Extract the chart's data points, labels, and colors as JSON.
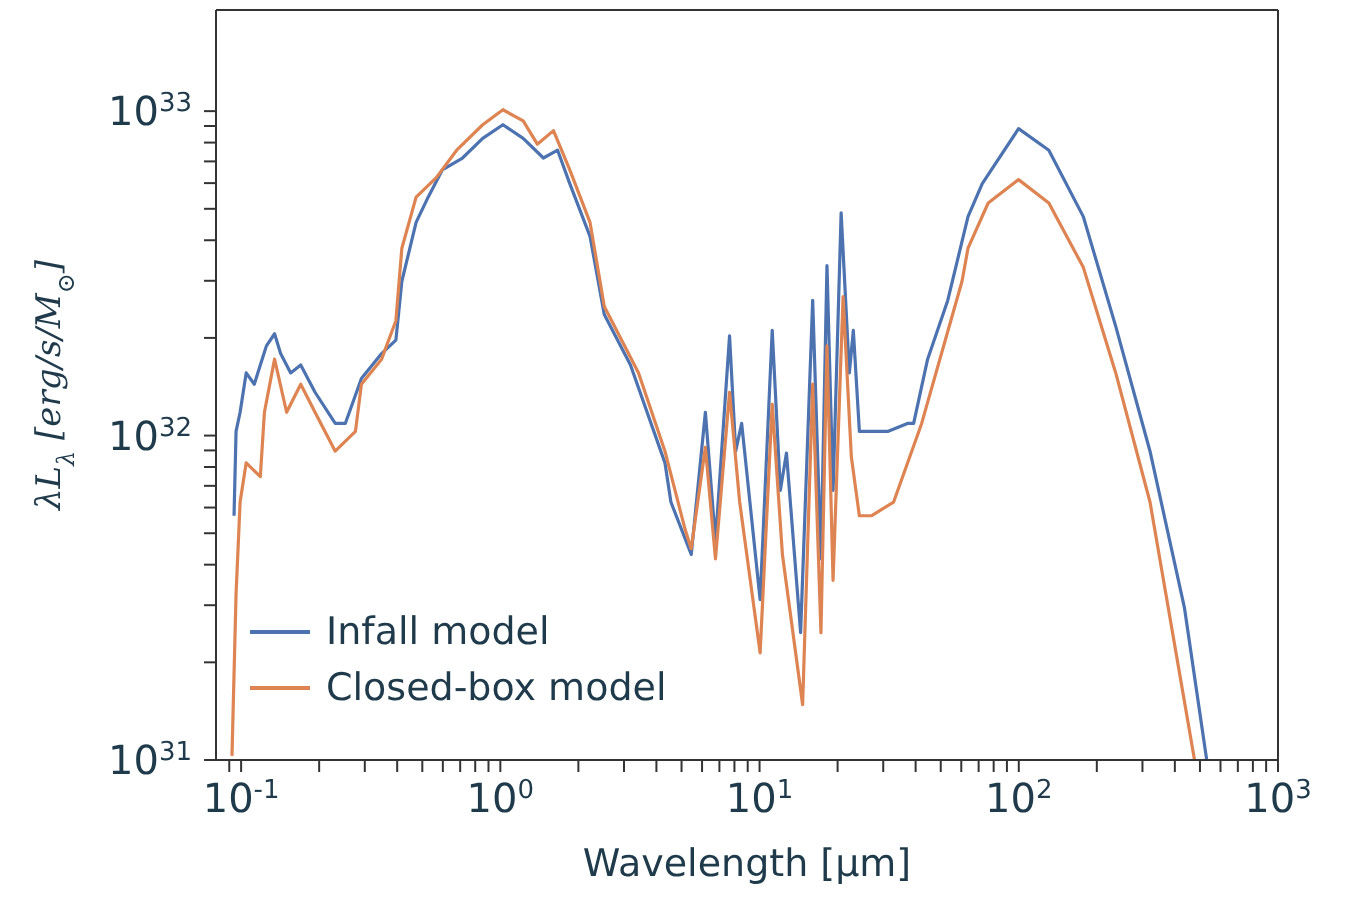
{
  "chart_data": {
    "type": "line",
    "xlabel": "Wavelength [μm]",
    "ylabel": "λL$_{λ}$ [erg/s/M$_{⊙}$]",
    "log": "xy",
    "legend": "bottom left",
    "xlim": [
      0.08,
      1000
    ],
    "ylim": [
      1e+31,
      2.05e+33
    ],
    "xticks": [
      {
        "value": 0.09,
        "label": null
      },
      {
        "value": 0.1,
        "label": "10$^{-1}$"
      },
      {
        "value": 0.2,
        "label": null
      },
      {
        "value": 0.3,
        "label": null
      },
      {
        "value": 0.4,
        "label": null
      },
      {
        "value": 0.5,
        "label": null
      },
      {
        "value": 0.6,
        "label": null
      },
      {
        "value": 0.7,
        "label": null
      },
      {
        "value": 0.8,
        "label": null
      },
      {
        "value": 0.9,
        "label": null
      },
      {
        "value": 1,
        "label": "10$^{0}$"
      },
      {
        "value": 2,
        "label": null
      },
      {
        "value": 3,
        "label": null
      },
      {
        "value": 4,
        "label": null
      },
      {
        "value": 5,
        "label": null
      },
      {
        "value": 6,
        "label": null
      },
      {
        "value": 7,
        "label": null
      },
      {
        "value": 8,
        "label": null
      },
      {
        "value": 9,
        "label": null
      },
      {
        "value": 10,
        "label": "10$^{1}$"
      },
      {
        "value": 20,
        "label": null
      },
      {
        "value": 30,
        "label": null
      },
      {
        "value": 40,
        "label": null
      },
      {
        "value": 50,
        "label": null
      },
      {
        "value": 60,
        "label": null
      },
      {
        "value": 70,
        "label": null
      },
      {
        "value": 80,
        "label": null
      },
      {
        "value": 90,
        "label": null
      },
      {
        "value": 100,
        "label": "10$^{2}$"
      },
      {
        "value": 200,
        "label": null
      },
      {
        "value": 300,
        "label": null
      },
      {
        "value": 400,
        "label": null
      },
      {
        "value": 500,
        "label": null
      },
      {
        "value": 600,
        "label": null
      },
      {
        "value": 700,
        "label": null
      },
      {
        "value": 800,
        "label": null
      },
      {
        "value": 900,
        "label": null
      },
      {
        "value": 1000,
        "label": "10$^{3}$"
      }
    ],
    "yticks": [
      {
        "value": 1e+31,
        "label": "10$^{31}$"
      },
      {
        "value": 2e+31,
        "label": null
      },
      {
        "value": 3e+31,
        "label": null
      },
      {
        "value": 4e+31,
        "label": null
      },
      {
        "value": 5e+31,
        "label": null
      },
      {
        "value": 6e+31,
        "label": null
      },
      {
        "value": 7e+31,
        "label": null
      },
      {
        "value": 8e+31,
        "label": null
      },
      {
        "value": 9e+31,
        "label": null
      },
      {
        "value": 1e+32,
        "label": "10$^{32}$"
      },
      {
        "value": 2e+32,
        "label": null
      },
      {
        "value": 3e+32,
        "label": null
      },
      {
        "value": 4e+32,
        "label": null
      },
      {
        "value": 5e+32,
        "label": null
      },
      {
        "value": 6e+32,
        "label": null
      },
      {
        "value": 7e+32,
        "label": null
      },
      {
        "value": 8e+32,
        "label": null
      },
      {
        "value": 9e+32,
        "label": null
      },
      {
        "value": 1e+33,
        "label": "10$^{33}$"
      }
    ],
    "series": [
      {
        "name": "Infall model",
        "color": "#4c72b0",
        "x": [
          0.0939,
          0.0956,
          0.0991,
          0.1046,
          0.1124,
          0.1186,
          0.1252,
          0.1346,
          0.142,
          0.1553,
          0.1698,
          0.1928,
          0.2307,
          0.2523,
          0.2911,
          0.3483,
          0.3954,
          0.4169,
          0.4732,
          0.5265,
          0.597,
          0.7145,
          0.855,
          1.023,
          1.225,
          1.466,
          1.663,
          1.853,
          2.218,
          2.518,
          3.177,
          4.315,
          4.55,
          5.45,
          6.18,
          6.76,
          7.66,
          8.09,
          8.53,
          10.05,
          11.19,
          12.03,
          12.7,
          14.4,
          16.03,
          17.25,
          18.2,
          19.21,
          20.64,
          22.2,
          23.0,
          24.27,
          26.1,
          31.2,
          37.2,
          39.3,
          44.5,
          53.2,
          63.7,
          72.3,
          99.8,
          130.6,
          177.4,
          236.6,
          320.8,
          435.5,
          530.9
        ],
        "values": [
          5.66e+31,
          1.03e+32,
          1.18e+32,
          1.56e+32,
          1.44e+32,
          1.65e+32,
          1.89e+32,
          2.06e+32,
          1.79e+32,
          1.56e+32,
          1.65e+32,
          1.36e+32,
          1.09e+32,
          1.09e+32,
          1.5e+32,
          1.79e+32,
          1.97e+32,
          2.99e+32,
          4.54e+32,
          5.43e+32,
          6.59e+32,
          7.17e+32,
          8.24e+32,
          9.08e+32,
          8.24e+32,
          7.17e+32,
          7.58e+32,
          5.98e+32,
          4.11e+32,
          2.36e+32,
          1.65e+32,
          8.24e+31,
          6.24e+31,
          4.3e+31,
          1.18e+32,
          4.73e+31,
          2.03e+32,
          8.95e+31,
          1.09e+32,
          3.12e+31,
          2.11e+32,
          6.78e+31,
          8.83e+31,
          2.47e+31,
          2.61e+32,
          4.17e+31,
          3.34e+32,
          6.78e+31,
          4.86e+32,
          1.56e+32,
          2.11e+32,
          1.03e+32,
          1.03e+32,
          1.03e+32,
          1.09e+32,
          1.09e+32,
          1.72e+32,
          2.61e+32,
          4.73e+32,
          5.98e+32,
          8.83e+32,
          7.58e+32,
          4.73e+32,
          2.17e+32,
          8.95e+31,
          2.95e+31,
          1e+31
        ]
      },
      {
        "name": "Closed-box model",
        "color": "#dd8452",
        "x": [
          0.0922,
          0.0956,
          0.0991,
          0.1046,
          0.1186,
          0.123,
          0.1346,
          0.1498,
          0.1698,
          0.1928,
          0.2307,
          0.2761,
          0.2911,
          0.3483,
          0.3954,
          0.4169,
          0.4732,
          0.5662,
          0.6785,
          0.855,
          1.023,
          1.225,
          1.389,
          1.603,
          1.853,
          2.218,
          2.518,
          3.413,
          4.315,
          5.16,
          5.45,
          6.18,
          6.76,
          7.66,
          8.38,
          10.05,
          11.19,
          12.25,
          14.66,
          16.03,
          17.25,
          18.2,
          19.21,
          21.0,
          22.6,
          24.27,
          27.0,
          32.9,
          42.2,
          60.4,
          63.7,
          76.2,
          99.8,
          130.6,
          177.4,
          236.6,
          320.8,
          476.4
        ],
        "values": [
          1.03e+31,
          3.25e+31,
          6.24e+31,
          8.24e+31,
          7.47e+31,
          1.18e+32,
          1.72e+32,
          1.18e+32,
          1.44e+32,
          1.18e+32,
          8.95e+31,
          1.03e+32,
          1.44e+32,
          1.72e+32,
          2.26e+32,
          3.78e+32,
          5.43e+32,
          6.24e+32,
          7.58e+32,
          9.08e+32,
          1.01e+33,
          9.33e+32,
          7.91e+32,
          8.71e+32,
          6.59e+32,
          4.54e+32,
          2.5e+32,
          1.56e+32,
          8.95e+31,
          5.14e+31,
          4.48e+31,
          9.2e+31,
          4.17e+31,
          1.36e+32,
          6.24e+31,
          2.14e+31,
          1.25e+32,
          4.3e+31,
          1.48e+31,
          1.44e+32,
          2.47e+31,
          1.89e+32,
          3.58e+31,
          2.68e+32,
          8.59e+31,
          5.66e+31,
          5.66e+31,
          6.24e+31,
          1.09e+32,
          2.99e+32,
          3.78e+32,
          5.21e+32,
          6.15e+32,
          5.21e+32,
          3.3e+32,
          1.56e+32,
          6.24e+31,
          1e+31
        ]
      }
    ]
  }
}
